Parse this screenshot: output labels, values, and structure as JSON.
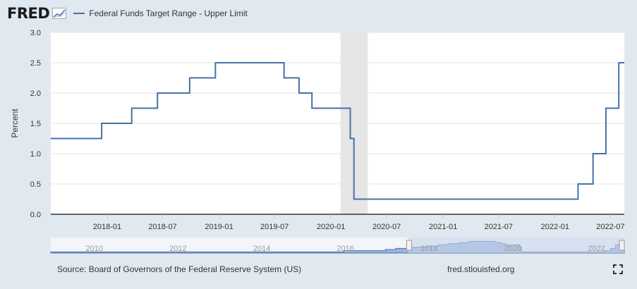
{
  "header": {
    "logo_text": "FRED",
    "logo_icon": "chart-line-icon",
    "legend_label": "Federal Funds Target Range - Upper Limit"
  },
  "footer": {
    "source": "Source: Board of Governors of the Federal Reserve System (US)",
    "url": "fred.stlouisfed.org",
    "fullscreen_icon": "expand-icon"
  },
  "colors": {
    "series": "#4572a7",
    "recession": "#e6e6e6",
    "navigator_fill": "#9cb4dc",
    "navigator_mask": "#c6d4ea",
    "background": "#e1e9f0"
  },
  "chart_data": {
    "type": "line",
    "ylabel": "Percent",
    "ylim": [
      0,
      3.0
    ],
    "xlim": [
      "2017-07-01",
      "2022-08-15"
    ],
    "yticks": [
      "0.0",
      "0.5",
      "1.0",
      "1.5",
      "2.0",
      "2.5",
      "3.0"
    ],
    "xticks": [
      "2018-01",
      "2018-07",
      "2019-01",
      "2019-07",
      "2020-01",
      "2020-07",
      "2021-01",
      "2021-07",
      "2022-01",
      "2022-07"
    ],
    "step": true,
    "grid": true,
    "legend": "top-left",
    "series": [
      {
        "name": "Federal Funds Target Range - Upper Limit",
        "x": [
          "2017-07-01",
          "2017-12-14",
          "2018-03-22",
          "2018-06-14",
          "2018-09-27",
          "2018-12-20",
          "2019-08-01",
          "2019-09-19",
          "2019-10-31",
          "2020-03-04",
          "2020-03-16",
          "2022-03-17",
          "2022-05-05",
          "2022-06-16",
          "2022-07-28",
          "2022-08-15"
        ],
        "values": [
          1.25,
          1.5,
          1.75,
          2.0,
          2.25,
          2.5,
          2.25,
          2.0,
          1.75,
          1.25,
          0.25,
          0.5,
          1.0,
          1.75,
          2.5,
          2.5
        ]
      }
    ],
    "recession_shading": [
      {
        "start": "2020-02-01",
        "end": "2020-04-30"
      }
    ],
    "navigator": {
      "labels": [
        "2010",
        "2012",
        "2014",
        "2016",
        "2018",
        "2020",
        "2022"
      ]
    }
  }
}
